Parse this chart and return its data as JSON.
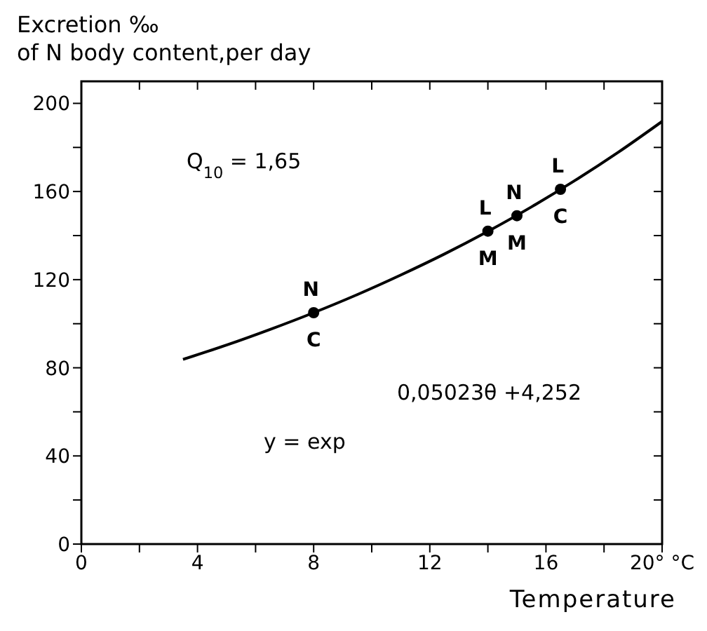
{
  "chart_data": {
    "type": "line",
    "ylabel": "Excretion ‰\nof N body content,per day",
    "xlabel": "Temperature",
    "xlim": [
      0,
      20
    ],
    "ylim": [
      0,
      210
    ],
    "xticks": [
      0,
      {
        "value": 2,
        "label": null
      },
      4,
      {
        "value": 6,
        "label": null
      },
      8,
      {
        "value": 10,
        "label": null
      },
      12,
      {
        "value": 14,
        "label": null
      },
      16,
      {
        "value": 18,
        "label": null
      },
      {
        "value": 20,
        "label": "20° °C"
      }
    ],
    "yticks": [
      0,
      {
        "value": 20,
        "label": null
      },
      40,
      {
        "value": 60,
        "label": null
      },
      80,
      {
        "value": 100,
        "label": null
      },
      120,
      {
        "value": 140,
        "label": null
      },
      160,
      {
        "value": 180,
        "label": null
      },
      200
    ],
    "grid": false,
    "marker": "none",
    "line_style": "solid",
    "series": [
      {
        "color": "#000000",
        "x": [
          3.5,
          5,
          6.5,
          8,
          9.5,
          11,
          12.5,
          14,
          15.5,
          17,
          18.5,
          20
        ],
        "values": [
          83.8,
          90.3,
          97.4,
          105,
          113.2,
          122.1,
          131.6,
          141.9,
          153,
          165,
          177.9,
          191.8
        ]
      },
      {
        "type": "scatter",
        "color": "#000000",
        "marker": "circle",
        "x": [
          8,
          14,
          15,
          16.5
        ],
        "values": [
          105,
          142,
          149,
          161
        ]
      }
    ],
    "annotations": [
      "Q$_{10}$ = 1,65",
      "0,05023θ +4,252",
      "y = exp",
      {
        "text": "N",
        "x": 8,
        "y": 105
      },
      {
        "text": "C",
        "x": 8,
        "y": 105
      },
      {
        "text": "L",
        "x": 14,
        "y": 142
      },
      {
        "text": "M",
        "x": 14,
        "y": 142
      },
      {
        "text": "N",
        "x": 15,
        "y": 149
      },
      {
        "text": "M",
        "x": 15,
        "y": 149
      },
      {
        "text": "L",
        "x": 16.5,
        "y": 161
      },
      {
        "text": "C",
        "x": 16.5,
        "y": 161
      }
    ]
  }
}
